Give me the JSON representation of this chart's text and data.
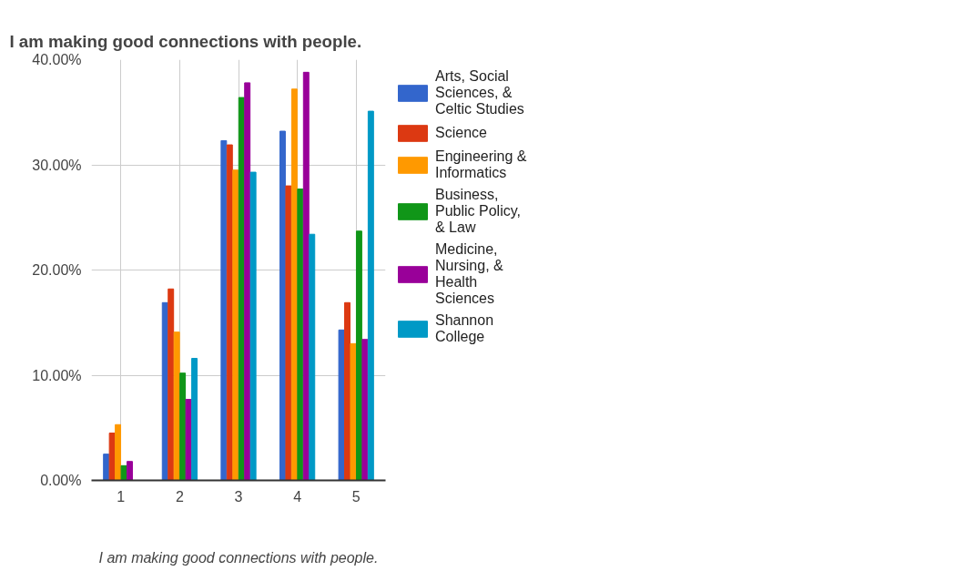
{
  "chart_data": {
    "type": "bar",
    "title": "I am making good connections with people.",
    "xlabel": "I am making good connections with people.",
    "categories": [
      "1",
      "2",
      "3",
      "4",
      "5"
    ],
    "series": [
      {
        "name": "Arts, Social Sciences, & Celtic Studies",
        "color": "#3366cc",
        "values": [
          2.5,
          16.9,
          32.3,
          33.2,
          14.3
        ]
      },
      {
        "name": "Science",
        "color": "#dc3912",
        "values": [
          4.5,
          18.2,
          31.9,
          28.0,
          16.9
        ]
      },
      {
        "name": "Engineering & Informatics",
        "color": "#ff9900",
        "values": [
          5.3,
          14.1,
          29.5,
          37.2,
          13.0
        ]
      },
      {
        "name": "Business, Public Policy, & Law",
        "color": "#109618",
        "values": [
          1.4,
          10.2,
          36.4,
          27.7,
          23.7
        ]
      },
      {
        "name": "Medicine, Nursing, & Health Sciences",
        "color": "#990099",
        "values": [
          1.8,
          7.7,
          37.8,
          38.8,
          13.4
        ]
      },
      {
        "name": "Shannon College",
        "color": "#0099c6",
        "values": [
          null,
          11.6,
          29.3,
          23.4,
          35.1
        ]
      }
    ],
    "ylim": [
      0,
      40
    ],
    "yticks": [
      {
        "value": 0,
        "label": "0.00%"
      },
      {
        "value": 10,
        "label": "10.00%"
      },
      {
        "value": 20,
        "label": "20.00%"
      },
      {
        "value": 30,
        "label": "30.00%"
      },
      {
        "value": 40,
        "label": "40.00%"
      }
    ],
    "grid": true,
    "legend": "right"
  }
}
